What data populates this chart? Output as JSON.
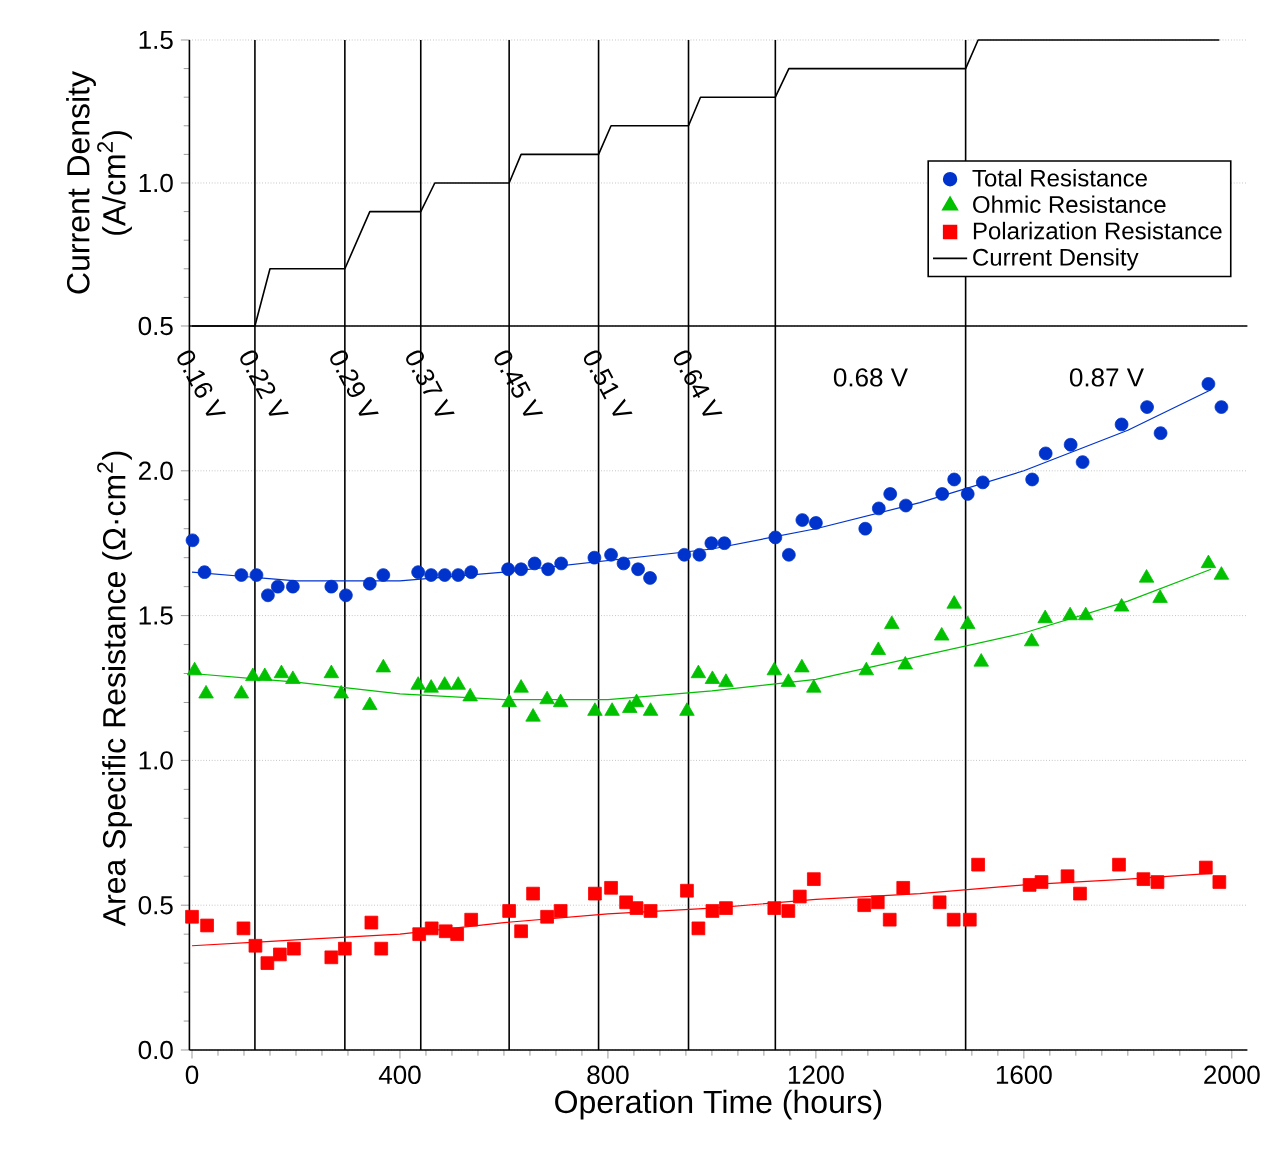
{
  "chart_data": [
    {
      "type": "line",
      "ylabel": "Current Density (A/cm$^{2}$)",
      "xlim": [
        -5,
        2030
      ],
      "ylim": [
        0.5,
        1.5
      ],
      "yticks": [
        {
          "value": 0.5,
          "label": "0.5"
        },
        {
          "value": 1.0,
          "label": "1.0"
        },
        {
          "value": 1.5,
          "label": "1.5"
        }
      ],
      "tick_labels": "y",
      "grid": "y",
      "legend": "bottom right",
      "series": [
        {
          "name": "Current Density",
          "color": "#000000",
          "x": [
            0,
            121,
            150,
            294,
            342,
            440,
            467,
            610,
            633,
            782,
            806,
            955,
            978,
            1122,
            1148,
            1488,
            1512,
            1976
          ],
          "values": [
            0.5,
            0.5,
            0.7,
            0.7,
            0.9,
            0.9,
            1.0,
            1.0,
            1.1,
            1.1,
            1.2,
            1.2,
            1.3,
            1.3,
            1.4,
            1.4,
            1.5,
            1.5
          ]
        }
      ],
      "ref_lines": [
        {
          "axis": "x",
          "value": 121
        },
        {
          "axis": "x",
          "value": 294
        },
        {
          "axis": "x",
          "value": 440
        },
        {
          "axis": "x",
          "value": 610
        },
        {
          "axis": "x",
          "value": 782
        },
        {
          "axis": "x",
          "value": 955
        },
        {
          "axis": "x",
          "value": 1122
        },
        {
          "axis": "x",
          "value": 1488
        }
      ]
    },
    {
      "type": "scatter",
      "xlabel": "Operation Time (hours)",
      "ylabel": "Area Specific Resistance (Ω·cm$^{2}$)",
      "xlim": [
        -5,
        2030
      ],
      "ylim": [
        0,
        2.5
      ],
      "xticks": [
        0,
        400,
        800,
        1200,
        1600,
        2000
      ],
      "yticks": [
        {
          "value": 0.0,
          "label": "0.0"
        },
        {
          "value": 0.5,
          "label": "0.5"
        },
        {
          "value": 1.0,
          "label": "1.0"
        },
        {
          "value": 1.5,
          "label": "1.5"
        },
        {
          "value": 2.0,
          "label": "2.0"
        }
      ],
      "grid": "y",
      "legend": "top right",
      "series": [
        {
          "name": "Total Resistance",
          "color": "#0033cc",
          "marker": "circle",
          "x": [
            1,
            24,
            95,
            124,
            146,
            165,
            194,
            268,
            296,
            342,
            368,
            435,
            460,
            486,
            512,
            537,
            608,
            633,
            659,
            685,
            710,
            774,
            806,
            830,
            858,
            881,
            947,
            976,
            999,
            1024,
            1122,
            1148,
            1174,
            1200,
            1295,
            1321,
            1343,
            1373,
            1443,
            1466,
            1492,
            1521,
            1616,
            1642,
            1690,
            1713,
            1788,
            1837,
            1863,
            1955,
            1980
          ],
          "values": [
            1.76,
            1.65,
            1.64,
            1.64,
            1.57,
            1.6,
            1.6,
            1.6,
            1.57,
            1.61,
            1.64,
            1.65,
            1.64,
            1.64,
            1.64,
            1.65,
            1.66,
            1.66,
            1.68,
            1.66,
            1.68,
            1.7,
            1.71,
            1.68,
            1.66,
            1.63,
            1.71,
            1.71,
            1.75,
            1.75,
            1.77,
            1.71,
            1.83,
            1.82,
            1.8,
            1.87,
            1.92,
            1.88,
            1.92,
            1.97,
            1.92,
            1.96,
            1.97,
            2.06,
            2.09,
            2.03,
            2.16,
            2.22,
            2.13,
            2.3,
            2.22
          ]
        },
        {
          "name": "Ohmic Resistance",
          "color": "#00c000",
          "marker": "triangle",
          "x": [
            5,
            27,
            95,
            117,
            140,
            172,
            194,
            268,
            287,
            342,
            368,
            435,
            460,
            486,
            512,
            535,
            610,
            633,
            656,
            683,
            709,
            775,
            808,
            842,
            855,
            882,
            952,
            974,
            1001,
            1027,
            1120,
            1147,
            1173,
            1196,
            1297,
            1320,
            1346,
            1372,
            1442,
            1466,
            1492,
            1518,
            1615,
            1641,
            1689,
            1719,
            1788,
            1836,
            1862,
            1955,
            1980
          ],
          "values": [
            1.31,
            1.23,
            1.23,
            1.29,
            1.29,
            1.3,
            1.28,
            1.3,
            1.23,
            1.19,
            1.32,
            1.26,
            1.25,
            1.26,
            1.26,
            1.22,
            1.2,
            1.25,
            1.15,
            1.21,
            1.2,
            1.17,
            1.17,
            1.18,
            1.2,
            1.17,
            1.17,
            1.3,
            1.28,
            1.27,
            1.31,
            1.27,
            1.32,
            1.25,
            1.31,
            1.38,
            1.47,
            1.33,
            1.43,
            1.54,
            1.47,
            1.34,
            1.41,
            1.49,
            1.5,
            1.5,
            1.53,
            1.63,
            1.56,
            1.68,
            1.64
          ]
        },
        {
          "name": "Polarization Resistance",
          "color": "#ff0000",
          "marker": "square",
          "x": [
            0,
            29,
            99,
            122,
            145,
            169,
            196,
            268,
            294,
            345,
            364,
            437,
            461,
            488,
            510,
            537,
            610,
            633,
            656,
            683,
            709,
            775,
            806,
            835,
            855,
            882,
            952,
            974,
            1001,
            1027,
            1120,
            1147,
            1169,
            1196,
            1293,
            1319,
            1342,
            1368,
            1438,
            1465,
            1496,
            1512,
            1611,
            1634,
            1684,
            1708,
            1783,
            1830,
            1857,
            1950,
            1976
          ],
          "values": [
            0.46,
            0.43,
            0.42,
            0.36,
            0.3,
            0.33,
            0.35,
            0.32,
            0.35,
            0.44,
            0.35,
            0.4,
            0.42,
            0.41,
            0.4,
            0.45,
            0.48,
            0.41,
            0.54,
            0.46,
            0.48,
            0.54,
            0.56,
            0.51,
            0.49,
            0.48,
            0.55,
            0.42,
            0.48,
            0.49,
            0.49,
            0.48,
            0.53,
            0.59,
            0.5,
            0.51,
            0.45,
            0.56,
            0.51,
            0.45,
            0.45,
            0.64,
            0.57,
            0.58,
            0.6,
            0.54,
            0.64,
            0.59,
            0.58,
            0.63,
            0.58
          ]
        },
        {
          "type": "line",
          "color": "#0033cc",
          "x": [
            0,
            200,
            400,
            600,
            800,
            1000,
            1200,
            1400,
            1600,
            1800,
            1960
          ],
          "values": [
            1.65,
            1.62,
            1.62,
            1.65,
            1.69,
            1.73,
            1.8,
            1.89,
            2.0,
            2.14,
            2.28
          ]
        },
        {
          "type": "line",
          "color": "#00c000",
          "x": [
            0,
            200,
            400,
            600,
            800,
            1000,
            1200,
            1400,
            1600,
            1800,
            1960
          ],
          "values": [
            1.3,
            1.27,
            1.23,
            1.21,
            1.21,
            1.24,
            1.28,
            1.36,
            1.44,
            1.55,
            1.66
          ]
        },
        {
          "type": "line",
          "color": "#ff0000",
          "x": [
            0,
            200,
            400,
            600,
            800,
            1000,
            1200,
            1400,
            1600,
            1800,
            1960
          ],
          "values": [
            0.36,
            0.38,
            0.4,
            0.44,
            0.47,
            0.49,
            0.52,
            0.54,
            0.57,
            0.59,
            0.61
          ]
        }
      ],
      "ref_lines": [
        {
          "axis": "x",
          "value": 121
        },
        {
          "axis": "x",
          "value": 294
        },
        {
          "axis": "x",
          "value": 440
        },
        {
          "axis": "x",
          "value": 610
        },
        {
          "axis": "x",
          "value": 782
        },
        {
          "axis": "x",
          "value": 955
        },
        {
          "axis": "x",
          "value": 1122
        },
        {
          "axis": "x",
          "value": 1488
        }
      ],
      "annotations": [
        "0.16 V",
        "0.22 V",
        "0.29 V",
        "0.37 V",
        "0.45 V",
        "0.51 V",
        "0.64 V",
        "0.68 V",
        "0.87 V"
      ]
    }
  ]
}
